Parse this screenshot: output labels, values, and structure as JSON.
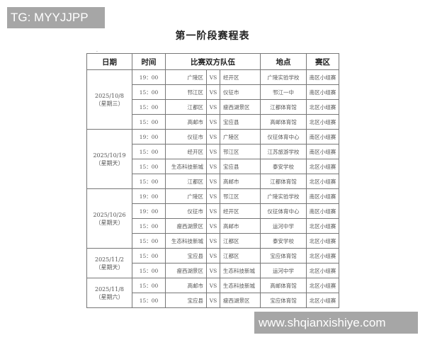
{
  "watermark_top": "TG: MYYJJPP",
  "watermark_bottom": "www.shqianxishiye.com",
  "title": "第一阶段赛程表",
  "headers": {
    "date": "日期",
    "time": "时间",
    "teams": "比赛双方队伍",
    "venue": "地点",
    "zone": "赛区"
  },
  "groups": [
    {
      "date": "2025/10/8",
      "weekday": "（星期三）",
      "matches": [
        {
          "time": "19：00",
          "home": "广陵区",
          "vs": "VS",
          "away": "经开区",
          "venue": "广陵实验学校",
          "zone": "南区小组赛"
        },
        {
          "time": "15：00",
          "home": "邗江区",
          "vs": "VS",
          "away": "仪征市",
          "venue": "邗江一中",
          "zone": "南区小组赛"
        },
        {
          "time": "15：00",
          "home": "江都区",
          "vs": "VS",
          "away": "瘦西湖景区",
          "venue": "江都体育馆",
          "zone": "北区小组赛"
        },
        {
          "time": "15：00",
          "home": "高邮市",
          "vs": "VS",
          "away": "宝应县",
          "venue": "高邮体育馆",
          "zone": "北区小组赛"
        }
      ]
    },
    {
      "date": "2025/10/19",
      "weekday": "（星期天）",
      "matches": [
        {
          "time": "19：00",
          "home": "仪征市",
          "vs": "VS",
          "away": "广陵区",
          "venue": "仪征体育中心",
          "zone": "南区小组赛"
        },
        {
          "time": "15：00",
          "home": "经开区",
          "vs": "VS",
          "away": "邗江区",
          "venue": "江苏旅游学校",
          "zone": "南区小组赛"
        },
        {
          "time": "15：00",
          "home": "生态科技新城",
          "vs": "VS",
          "away": "宝应县",
          "venue": "泰安学校",
          "zone": "北区小组赛"
        },
        {
          "time": "15：00",
          "home": "江都区",
          "vs": "VS",
          "away": "高邮市",
          "venue": "江都体育馆",
          "zone": "北区小组赛"
        }
      ]
    },
    {
      "date": "2025/10/26",
      "weekday": "（星期天）",
      "matches": [
        {
          "time": "19：00",
          "home": "广陵区",
          "vs": "VS",
          "away": "邗江区",
          "venue": "广陵实验学校",
          "zone": "南区小组赛"
        },
        {
          "time": "19：00",
          "home": "仪征市",
          "vs": "VS",
          "away": "经开区",
          "venue": "仪征体育中心",
          "zone": "南区小组赛"
        },
        {
          "time": "15：00",
          "home": "瘦西湖景区",
          "vs": "VS",
          "away": "高邮市",
          "venue": "运河中学",
          "zone": "北区小组赛"
        },
        {
          "time": "15：00",
          "home": "生态科技新城",
          "vs": "VS",
          "away": "江都区",
          "venue": "泰安学校",
          "zone": "北区小组赛"
        }
      ]
    },
    {
      "date": "2025/11/2",
      "weekday": "（星期天）",
      "matches": [
        {
          "time": "15：00",
          "home": "宝应县",
          "vs": "VS",
          "away": "江都区",
          "venue": "宝应体育馆",
          "zone": "北区小组赛"
        },
        {
          "time": "15：00",
          "home": "瘦西湖景区",
          "vs": "VS",
          "away": "生态科技新城",
          "venue": "运河中学",
          "zone": "北区小组赛"
        }
      ]
    },
    {
      "date": "2025/11/8",
      "weekday": "（星期六）",
      "matches": [
        {
          "time": "15：00",
          "home": "高邮市",
          "vs": "VS",
          "away": "生态科技新城",
          "venue": "高邮体育馆",
          "zone": "北区小组赛"
        },
        {
          "time": "15：00",
          "home": "宝应县",
          "vs": "VS",
          "away": "瘦西湖景区",
          "venue": "宝应体育馆",
          "zone": "北区小组赛"
        }
      ]
    }
  ]
}
